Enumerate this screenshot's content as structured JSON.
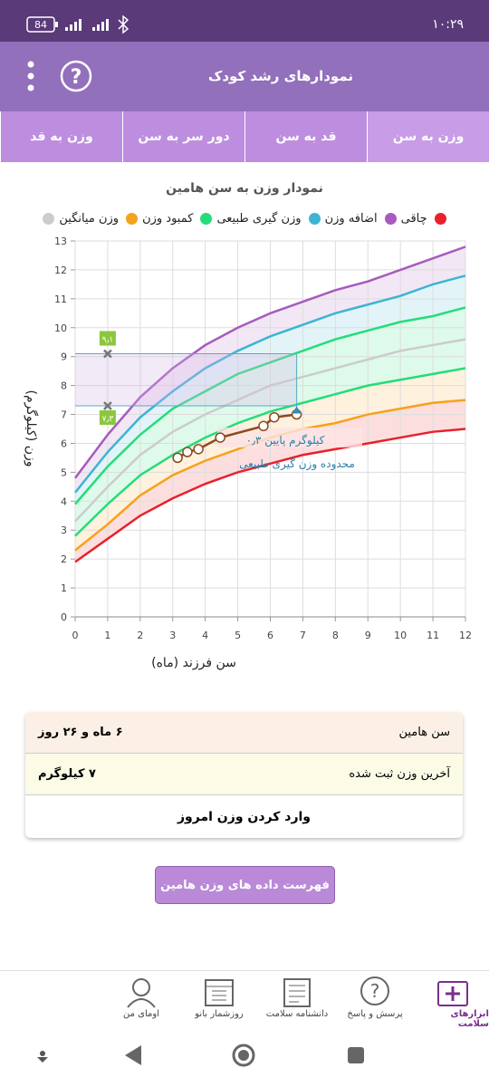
{
  "status_bar": {
    "battery": "84",
    "time": "۱۰:۲۹"
  },
  "header": {
    "title": "نمودارهای رشد کودک"
  },
  "tabs": [
    "وزن به سن",
    "قد به سن",
    "دور سر به سن",
    "وزن به قد"
  ],
  "chart_data": {
    "type": "line",
    "title": "نمودار وزن به سن هامین",
    "x_label": "سن فرزند (ماه)",
    "y_label": "وزن (کیلوگرم)",
    "legend": [
      {
        "color": "#e8212b"
      },
      {
        "name": "چاقی",
        "color": "#a75bbd"
      },
      {
        "name": "اضافه وزن",
        "color": "#3db4d3"
      },
      {
        "name": "وزن گیری طبیعی",
        "color": "#22dd7a"
      },
      {
        "name": "کمبود وزن",
        "color": "#f5a21b"
      },
      {
        "name": "وزن میانگین",
        "color": "#cccccc"
      }
    ],
    "x": [
      0,
      1,
      2,
      3,
      4,
      5,
      6,
      7,
      8,
      9,
      10,
      11,
      12
    ],
    "series": [
      {
        "color": "#e8212b",
        "values": [
          1.9,
          2.7,
          3.5,
          4.1,
          4.6,
          5.0,
          5.3,
          5.6,
          5.8,
          6.0,
          6.2,
          6.4,
          6.5
        ]
      },
      {
        "color": "#f5a21b",
        "values": [
          2.3,
          3.2,
          4.2,
          4.9,
          5.4,
          5.8,
          6.2,
          6.5,
          6.7,
          7.0,
          7.2,
          7.4,
          7.5
        ]
      },
      {
        "color": "#22dd7a",
        "values": [
          2.8,
          3.9,
          4.9,
          5.6,
          6.2,
          6.7,
          7.1,
          7.4,
          7.7,
          8.0,
          8.2,
          8.4,
          8.6
        ]
      },
      {
        "color": "#cccccc",
        "values": [
          3.3,
          4.5,
          5.6,
          6.4,
          7.0,
          7.5,
          8.0,
          8.3,
          8.6,
          8.9,
          9.2,
          9.4,
          9.6
        ]
      },
      {
        "color": "#22dd7a",
        "values": [
          3.9,
          5.2,
          6.3,
          7.2,
          7.8,
          8.4,
          8.8,
          9.2,
          9.6,
          9.9,
          10.2,
          10.4,
          10.7
        ]
      },
      {
        "color": "#3db4d3",
        "values": [
          4.3,
          5.7,
          6.9,
          7.8,
          8.6,
          9.2,
          9.7,
          10.1,
          10.5,
          10.8,
          11.1,
          11.5,
          11.8
        ]
      },
      {
        "color": "#a75bbd",
        "values": [
          4.8,
          6.3,
          7.6,
          8.6,
          9.4,
          10.0,
          10.5,
          10.9,
          11.3,
          11.6,
          12.0,
          12.4,
          12.8
        ]
      }
    ],
    "child": {
      "color": "#8b4a1e",
      "x": [
        3.15,
        3.45,
        3.79,
        4.46,
        5.79,
        6.12,
        6.81
      ],
      "values": [
        5.5,
        5.7,
        5.8,
        6.2,
        6.6,
        6.9,
        7.0
      ]
    },
    "range": {
      "x": 1,
      "values": [
        9.1,
        7.3
      ],
      "value_labels": [
        "۹٫۱",
        "۷٫۳"
      ]
    },
    "annotations": [
      "۰٫۳ کیلوگرم پایین",
      "محدوده وزن گیری طبیعی"
    ],
    "xlim": [
      0,
      12
    ],
    "ylim": [
      0,
      13
    ],
    "xticks": [
      0,
      1,
      2,
      3,
      4,
      5,
      6,
      7,
      8,
      9,
      10,
      11,
      12
    ],
    "yticks": [
      0,
      1,
      2,
      3,
      4,
      5,
      6,
      7,
      8,
      9,
      10,
      11,
      12,
      13
    ],
    "grid": true
  },
  "info": {
    "rows": [
      [
        "سن هامین",
        "۶ ماه و ۲۶ روز"
      ],
      [
        "آخرین وزن ثبت شده",
        "۷ کیلوگرم"
      ]
    ],
    "action": "وارد کردن وزن امروز"
  },
  "list_button": "فهرست داده های وزن هامین",
  "nav": [
    "ابزارهای سلامت",
    "پرسش و پاسخ",
    "دانشنامه سلامت",
    "روزشمار بانو",
    "اومای من"
  ]
}
